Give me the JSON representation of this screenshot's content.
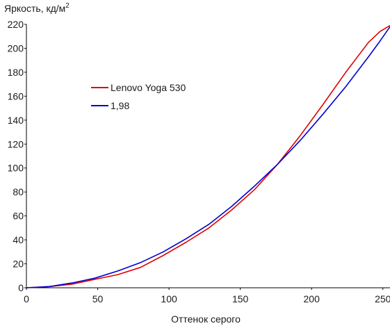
{
  "chart_data": {
    "type": "line",
    "title": "",
    "ylabel": "Яркость, кд/м",
    "ylabel_superscript": "2",
    "xlabel": "Оттенок серого",
    "xlim": [
      0,
      255
    ],
    "ylim": [
      0,
      220
    ],
    "xticks": [
      0,
      50,
      100,
      150,
      200,
      250
    ],
    "yticks": [
      0,
      20,
      40,
      60,
      80,
      100,
      120,
      140,
      160,
      180,
      200,
      220
    ],
    "grid": false,
    "legend_position": "upper-left",
    "series": [
      {
        "name": "Lenovo Yoga 530",
        "color": "#dd0000",
        "x": [
          0,
          16,
          32,
          48,
          64,
          80,
          96,
          112,
          128,
          144,
          160,
          176,
          192,
          208,
          224,
          240,
          248,
          255
        ],
        "y": [
          0,
          1,
          3,
          7,
          11,
          17,
          27,
          38,
          50,
          65,
          82,
          103,
          127,
          153,
          180,
          205,
          214,
          219
        ]
      },
      {
        "name": "1,98",
        "color": "#0000cc",
        "x": [
          0,
          16,
          32,
          48,
          64,
          80,
          96,
          112,
          128,
          144,
          160,
          176,
          192,
          208,
          224,
          240,
          248,
          255
        ],
        "y": [
          0,
          1,
          4,
          8,
          14,
          21,
          30,
          41,
          53,
          68,
          85,
          103,
          123,
          145,
          168,
          193,
          206,
          218
        ]
      }
    ]
  }
}
